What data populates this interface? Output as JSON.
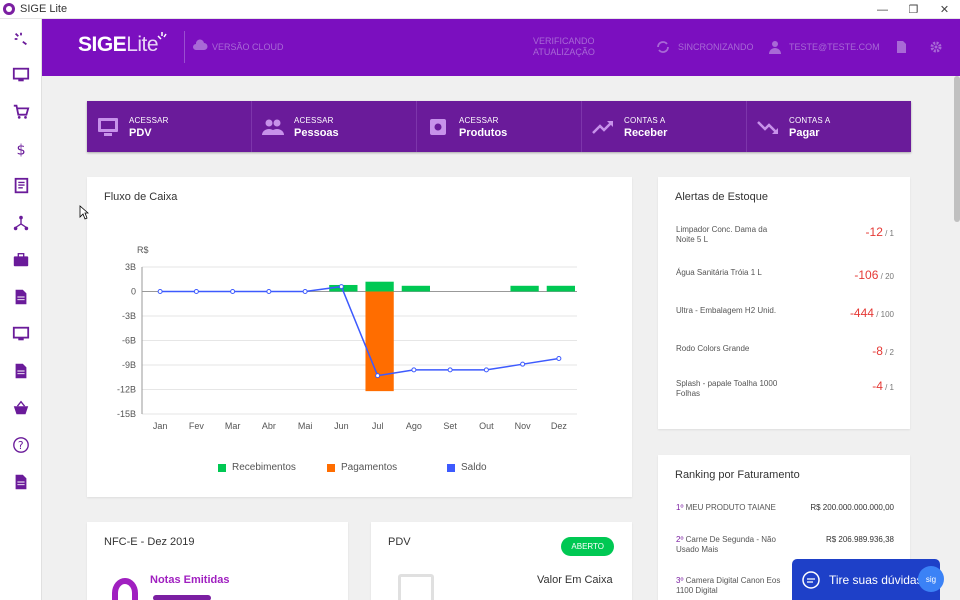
{
  "window": {
    "title": "SIGE Lite"
  },
  "header": {
    "brand_main": "SIGE",
    "brand_sub": "Lite",
    "cloud_label": "VERSÃO CLOUD",
    "update_label": "VERIFICANDO ATUALIZAÇÃO",
    "sync_label": "SINCRONIZANDO",
    "user_label": "TESTE@TESTE.COM"
  },
  "quick_access": [
    {
      "top": "ACESSAR",
      "bottom": "PDV",
      "icon": "monitor-icon"
    },
    {
      "top": "ACESSAR",
      "bottom": "Pessoas",
      "icon": "people-icon"
    },
    {
      "top": "ACESSAR",
      "bottom": "Produtos",
      "icon": "box-icon"
    },
    {
      "top": "CONTAS A",
      "bottom": "Receber",
      "icon": "trend-up-icon"
    },
    {
      "top": "CONTAS A",
      "bottom": "Pagar",
      "icon": "trend-down-icon"
    }
  ],
  "cash_flow": {
    "title": "Fluxo de Caixa"
  },
  "chart_data": {
    "type": "bar",
    "title": "Fluxo de Caixa",
    "ylabel": "R$",
    "xlabel": "",
    "categories": [
      "Jan",
      "Fev",
      "Mar",
      "Abr",
      "Mai",
      "Jun",
      "Jul",
      "Ago",
      "Set",
      "Out",
      "Nov",
      "Dez"
    ],
    "yticks": [
      "3B",
      "0",
      "-3B",
      "-6B",
      "-9B",
      "-12B",
      "-15B"
    ],
    "ytick_values": [
      3,
      0,
      -3,
      -6,
      -9,
      -12,
      -15
    ],
    "ylim": [
      -15,
      3
    ],
    "units": "billions R$",
    "series": [
      {
        "name": "Recebimentos",
        "type": "bar",
        "color": "#00c853",
        "values": [
          0,
          0,
          0,
          0,
          0,
          0.8,
          1.2,
          0.7,
          0,
          0,
          0.7,
          0.7
        ]
      },
      {
        "name": "Pagamentos",
        "type": "bar",
        "color": "#ff6d00",
        "values": [
          0,
          0,
          0,
          0,
          0,
          0,
          -12.2,
          0,
          0,
          0,
          0,
          0
        ]
      },
      {
        "name": "Saldo",
        "type": "line",
        "color": "#3d5afe",
        "values": [
          0,
          0,
          0,
          0,
          0,
          0.6,
          -10.3,
          -9.6,
          -9.6,
          -9.6,
          -8.9,
          -8.2
        ]
      }
    ],
    "legend": [
      "Recebimentos",
      "Pagamentos",
      "Saldo"
    ]
  },
  "stock_alerts": {
    "title": "Alertas de Estoque",
    "items": [
      {
        "name": "Limpador Conc. Dama da Noite 5 L",
        "qty": "-12",
        "min": "1"
      },
      {
        "name": "Água Sanitária Tróia 1 L",
        "qty": "-106",
        "min": "20"
      },
      {
        "name": "Ultra - Embalagem H2 Unid.",
        "qty": "-444",
        "min": "100"
      },
      {
        "name": "Rodo Colors Grande",
        "qty": "-8",
        "min": "2"
      },
      {
        "name": "Splash - papale Toalha 1000 Folhas",
        "qty": "-4",
        "min": "1"
      }
    ]
  },
  "ranking": {
    "title": "Ranking por Faturamento",
    "items": [
      {
        "pos": "1º",
        "name": "MEU PRODUTO TAIANE",
        "value": "R$ 200.000.000.000,00"
      },
      {
        "pos": "2º",
        "name": "Carne De Segunda - Não Usado Mais",
        "value": "R$ 206.989.936,38"
      },
      {
        "pos": "3º",
        "name": "Camera Digital Canon Eos 1100 Digital",
        "value": ""
      }
    ]
  },
  "nfce": {
    "title": "NFC-E - Dez 2019",
    "label": "Notas Emitidas"
  },
  "pdv": {
    "title": "PDV",
    "badge": "ABERTO",
    "cash_label": "Valor Em Caixa"
  },
  "help": {
    "text": "Tire suas dúvidas",
    "bubble": "sig"
  }
}
